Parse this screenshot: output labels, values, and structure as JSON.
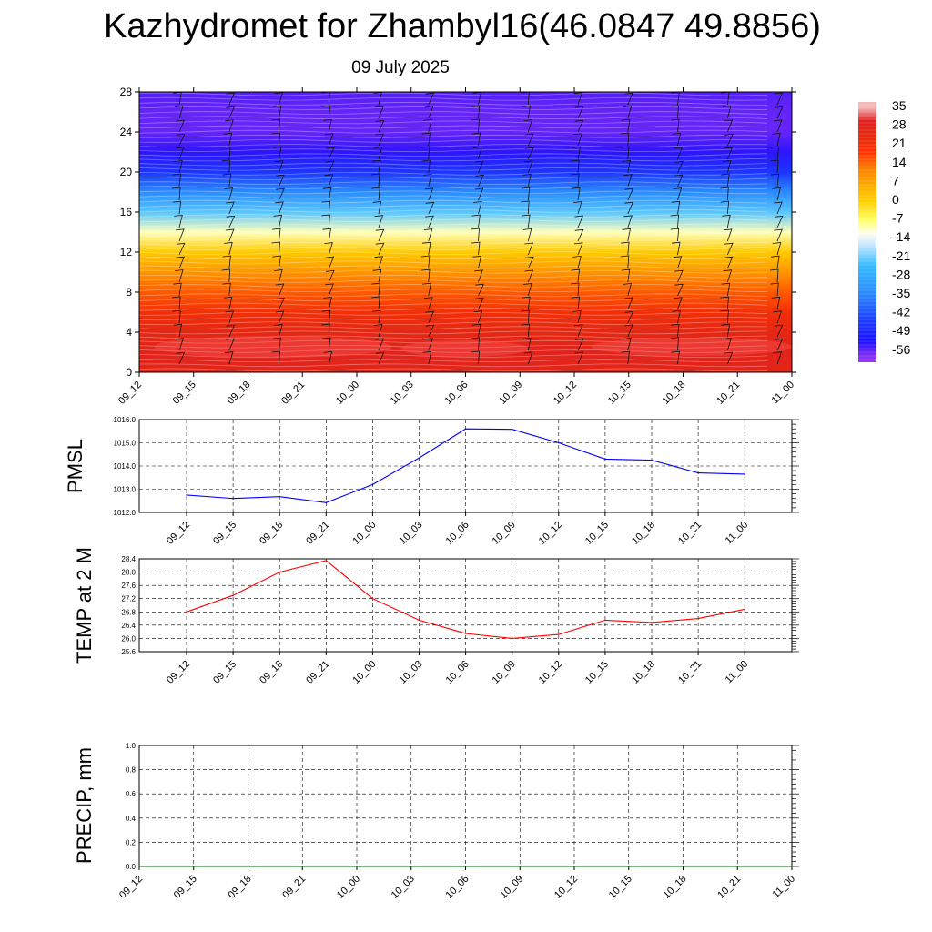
{
  "title": "Kazhydromet for Zhambyl16(46.0847 49.8856)",
  "subtitle": "09 July 2025",
  "chart_data": [
    {
      "type": "heatmap",
      "name": "upper-air-temperature",
      "x_ticks": [
        "09_12",
        "09_15",
        "09_18",
        "09_21",
        "10_00",
        "10_03",
        "10_06",
        "10_09",
        "10_12",
        "10_15",
        "10_18",
        "10_21",
        "11_00"
      ],
      "y_ticks": [
        "0",
        "4",
        "8",
        "12",
        "16",
        "20",
        "24",
        "28"
      ],
      "ylim": [
        0,
        28
      ],
      "levels": [
        0,
        2,
        4,
        6,
        8,
        10,
        12,
        14,
        16,
        18,
        20,
        22,
        24,
        26,
        28
      ],
      "values_by_level": [
        27,
        28,
        25,
        21,
        15,
        9,
        1,
        -10,
        -22,
        -34,
        -46,
        -53,
        -56,
        -56,
        -55
      ],
      "colorbar": {
        "labels": [
          "35",
          "28",
          "21",
          "14",
          "7",
          "0",
          "-7",
          "-14",
          "-21",
          "-28",
          "-35",
          "-42",
          "-49",
          "-56"
        ],
        "stops": [
          {
            "v": 35,
            "c": "#f5b8b8"
          },
          {
            "v": 30,
            "c": "#e02020"
          },
          {
            "v": 24,
            "c": "#e62a10"
          },
          {
            "v": 18,
            "c": "#ff3300"
          },
          {
            "v": 12,
            "c": "#ff8000"
          },
          {
            "v": 5,
            "c": "#ffb000"
          },
          {
            "v": 0,
            "c": "#ffd000"
          },
          {
            "v": -7,
            "c": "#ffff66"
          },
          {
            "v": -12,
            "c": "#fffff0"
          },
          {
            "v": -16,
            "c": "#cce8ff"
          },
          {
            "v": -24,
            "c": "#33bbff"
          },
          {
            "v": -34,
            "c": "#2a8cff"
          },
          {
            "v": -44,
            "c": "#1e40ff"
          },
          {
            "v": -52,
            "c": "#1a10ff"
          },
          {
            "v": -58,
            "c": "#8a2ef5"
          },
          {
            "v": -60,
            "c": "#9a3cf0"
          }
        ]
      }
    },
    {
      "type": "line",
      "name": "pmsl",
      "ylabel": "PMSL",
      "x": [
        "09_12",
        "09_15",
        "09_18",
        "09_21",
        "10_00",
        "10_03",
        "10_06",
        "10_09",
        "10_12",
        "10_15",
        "10_18",
        "10_21",
        "11_00"
      ],
      "y": [
        1012.75,
        1012.6,
        1012.68,
        1012.42,
        1013.2,
        1014.35,
        1015.6,
        1015.58,
        1015.0,
        1014.3,
        1014.25,
        1013.7,
        1013.65
      ],
      "ylim": [
        1012.0,
        1016.0
      ],
      "y_ticks": [
        "1012.0",
        "1013.0",
        "1014.0",
        "1015.0",
        "1016.0"
      ],
      "color": "#0000ff"
    },
    {
      "type": "line",
      "name": "temp2m",
      "ylabel": "TEMP at 2 M",
      "x": [
        "09_12",
        "09_15",
        "09_18",
        "09_21",
        "10_00",
        "10_03",
        "10_06",
        "10_09",
        "10_12",
        "10_15",
        "10_18",
        "10_21",
        "11_00"
      ],
      "y": [
        26.8,
        27.3,
        28.0,
        28.35,
        27.2,
        26.55,
        26.15,
        26.0,
        26.12,
        26.55,
        26.48,
        26.6,
        26.88
      ],
      "ylim": [
        25.6,
        28.4
      ],
      "y_ticks": [
        "25.6",
        "26.0",
        "26.4",
        "26.8",
        "27.2",
        "27.6",
        "28.0",
        "28.4"
      ],
      "color": "#ff0000"
    },
    {
      "type": "line",
      "name": "precip",
      "ylabel": "PRECIP, mm",
      "x": [
        "09_12",
        "09_15",
        "09_18",
        "09_21",
        "10_00",
        "10_03",
        "10_06",
        "10_09",
        "10_12",
        "10_15",
        "10_18",
        "10_21",
        "11_00"
      ],
      "y": [
        0,
        0,
        0,
        0,
        0,
        0,
        0,
        0,
        0,
        0,
        0,
        0,
        0
      ],
      "ylim": [
        0.0,
        1.0
      ],
      "y_ticks": [
        "0.0",
        "0.2",
        "0.4",
        "0.6",
        "0.8",
        "1.0"
      ],
      "color": "#006600"
    }
  ]
}
